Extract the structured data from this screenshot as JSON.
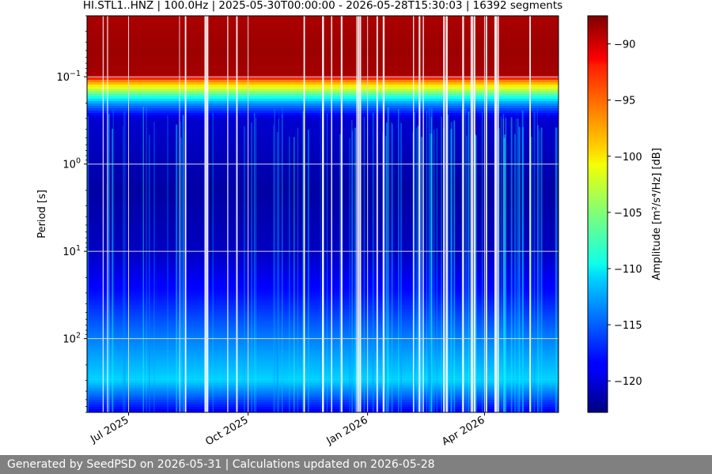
{
  "chart_data": {
    "type": "heatmap",
    "title": "HI.STL1..HNZ | 100.0Hz | 2025-05-30T00:00:00 - 2026-05-28T15:30:03 | 16392 segments",
    "xlabel": "",
    "ylabel": "Period [s]",
    "yscale": "log",
    "yaxis_inverted": true,
    "ylim": [
      0.02,
      700
    ],
    "xlim": [
      "2025-05-30",
      "2026-05-28"
    ],
    "x_ticks": [
      {
        "date": "2025-07-01",
        "label": "Jul 2025"
      },
      {
        "date": "2025-10-01",
        "label": "Oct 2025"
      },
      {
        "date": "2026-01-01",
        "label": "Jan 2026"
      },
      {
        "date": "2026-04-01",
        "label": "Apr 2026"
      }
    ],
    "y_ticks": [
      {
        "value": 0.1,
        "base": "10",
        "exp": "−1"
      },
      {
        "value": 1,
        "base": "10",
        "exp": "0"
      },
      {
        "value": 10,
        "base": "10",
        "exp": "1"
      },
      {
        "value": 100,
        "base": "10",
        "exp": "2"
      }
    ],
    "grid": true,
    "colormap": "jet",
    "colorbar": {
      "label": "Amplitude [m²/s⁴/Hz] [dB]",
      "range": [
        -122.8,
        -87.5
      ],
      "ticks": [
        -90,
        -95,
        -100,
        -105,
        -110,
        -115,
        -120
      ],
      "tick_labels": [
        "−90",
        "−95",
        "−100",
        "−105",
        "−110",
        "−115",
        "−120"
      ]
    },
    "amplitude_profile": [
      {
        "period": 0.02,
        "db": -89
      },
      {
        "period": 0.05,
        "db": -88.5
      },
      {
        "period": 0.098,
        "db": -88.8
      },
      {
        "period": 0.11,
        "db": -96
      },
      {
        "period": 0.14,
        "db": -103
      },
      {
        "period": 0.2,
        "db": -113
      },
      {
        "period": 0.3,
        "db": -120
      },
      {
        "period": 2,
        "db": -121.5
      },
      {
        "period": 10,
        "db": -120.5
      },
      {
        "period": 30,
        "db": -118
      },
      {
        "period": 100,
        "db": -114
      },
      {
        "period": 300,
        "db": -111
      },
      {
        "period": 700,
        "db": -119
      }
    ]
  },
  "footer": {
    "text": "Generated by SeedPSD on 2026-05-31 | Calculations updated on 2026-05-28"
  }
}
